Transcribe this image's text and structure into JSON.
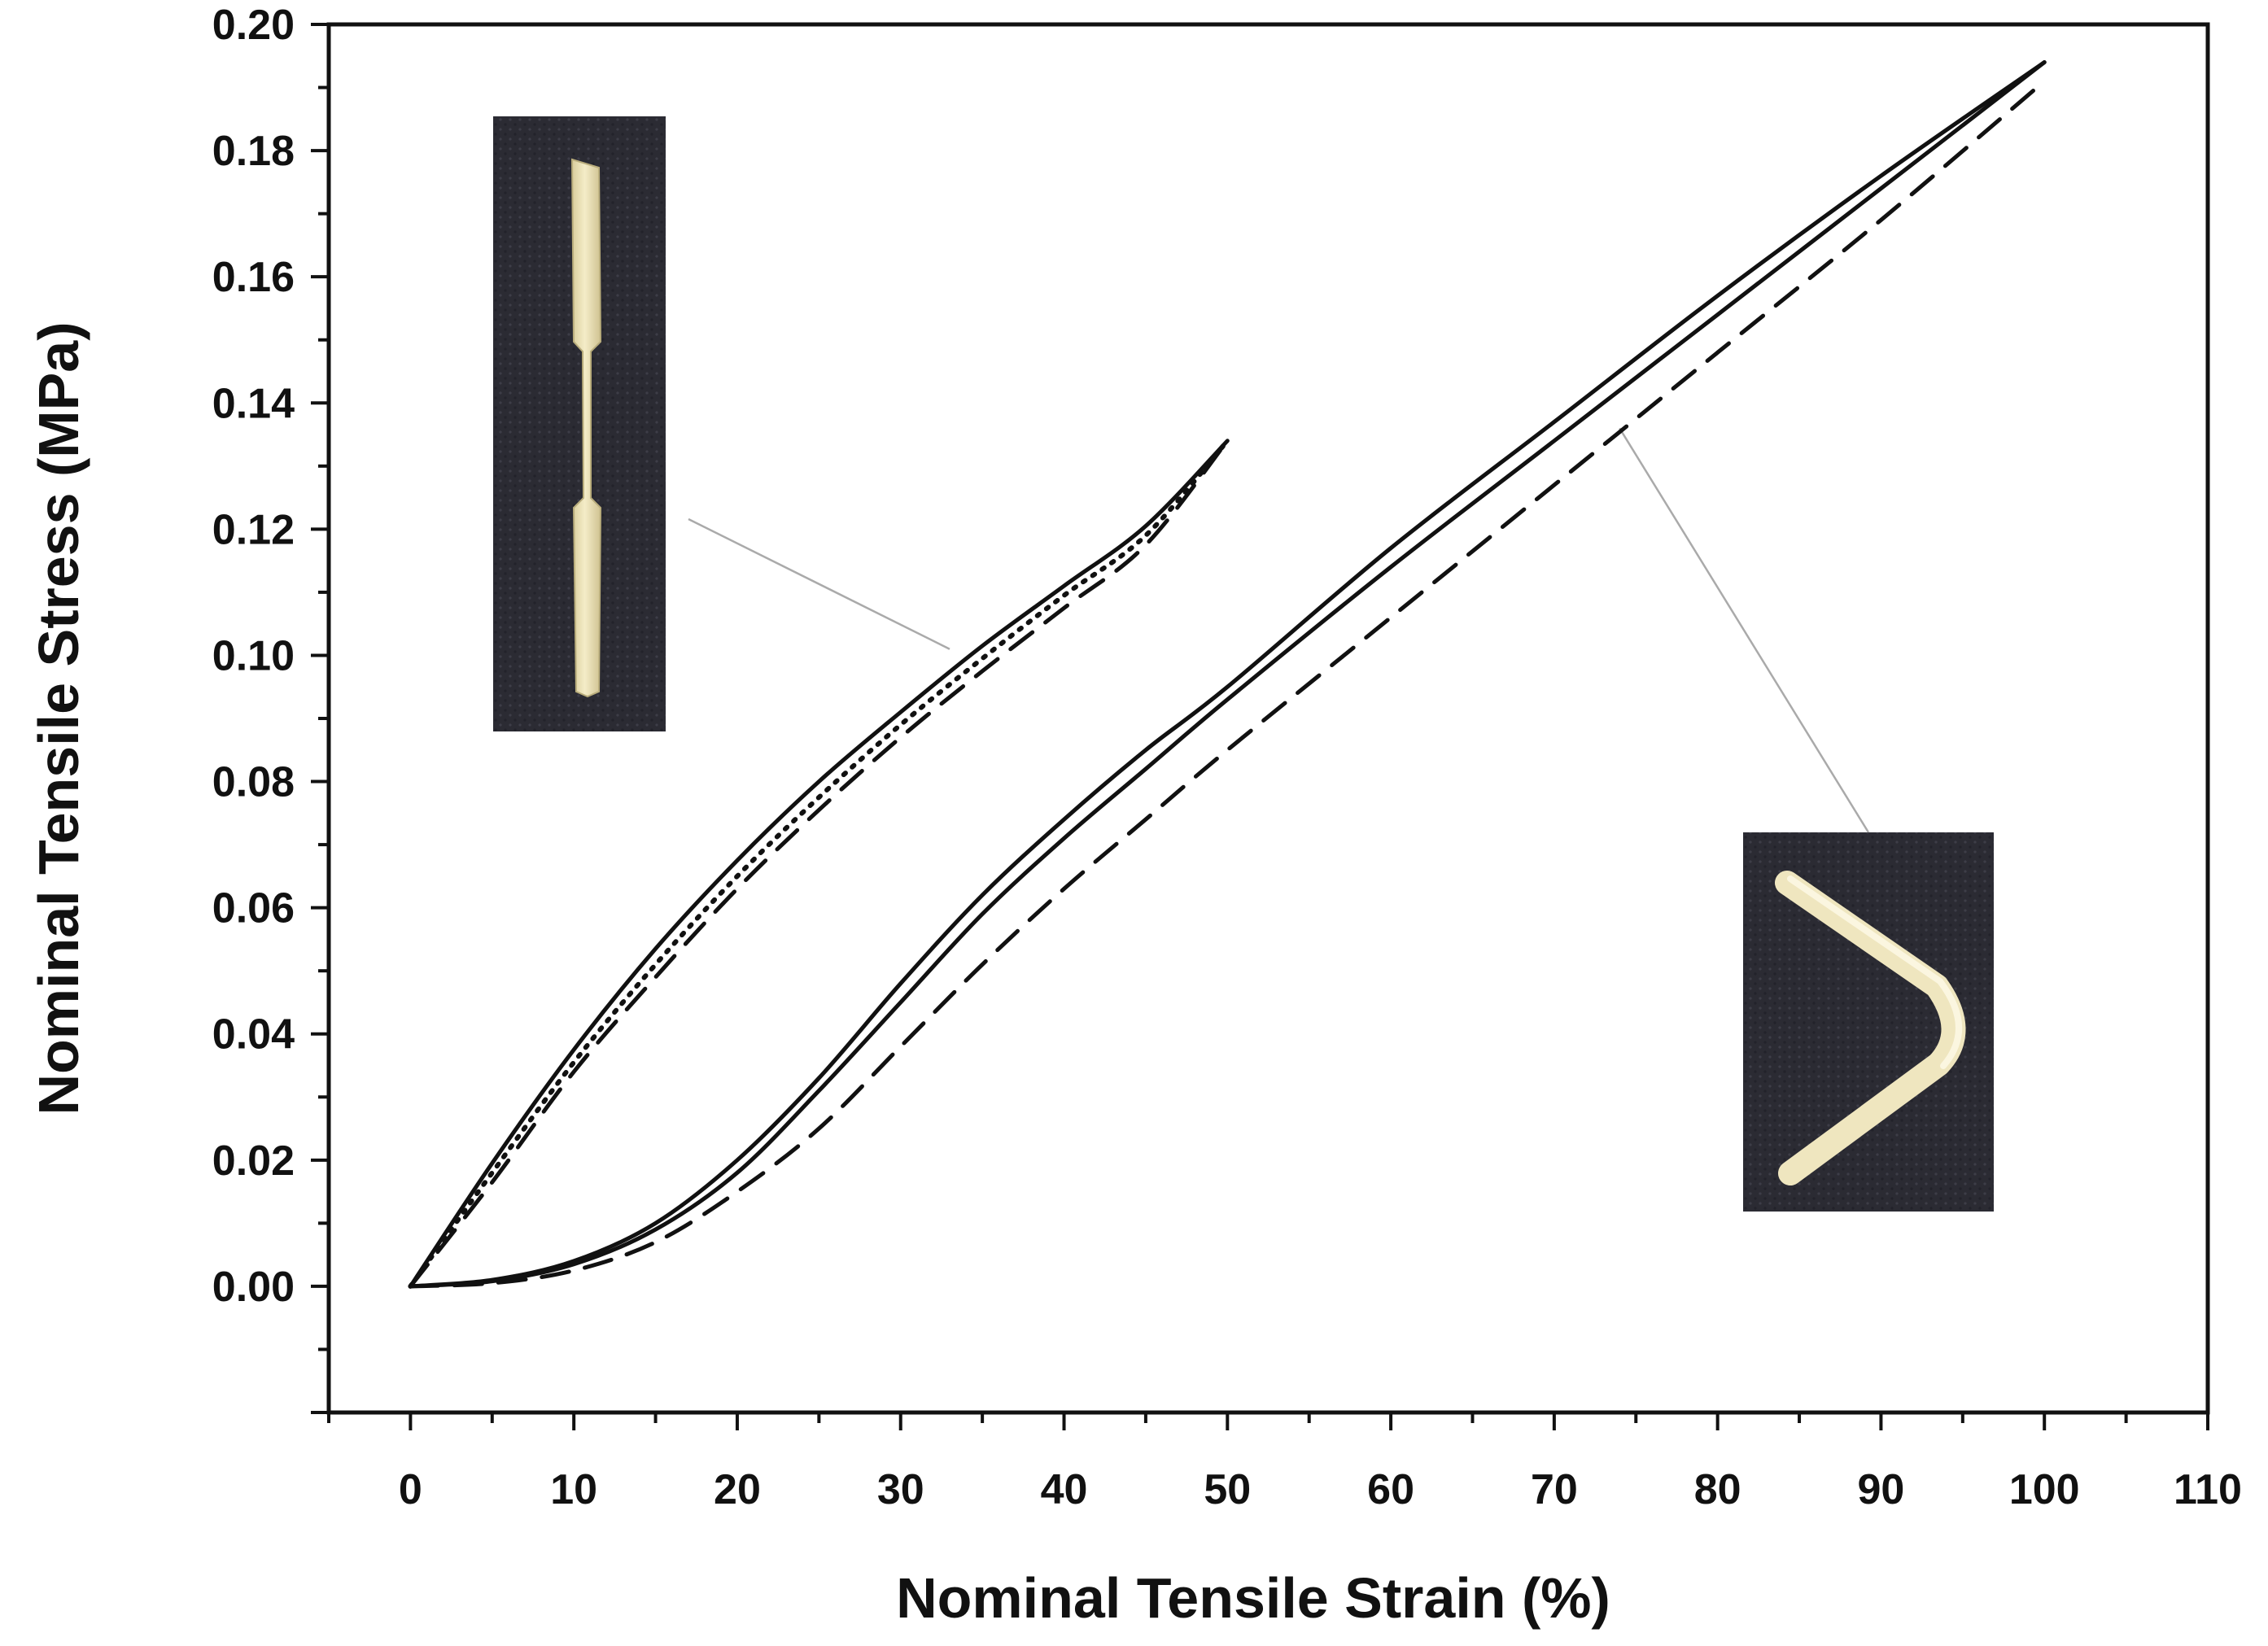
{
  "chart_data": {
    "type": "line",
    "title": "",
    "xlabel": "Nominal Tensile Strain (%)",
    "ylabel": "Nominal Tensile Stress (MPa)",
    "xlim": [
      -5,
      110
    ],
    "ylim": [
      -0.02,
      0.2
    ],
    "x_ticks": [
      "0",
      "10",
      "20",
      "30",
      "40",
      "50",
      "60",
      "70",
      "80",
      "90",
      "100",
      "110"
    ],
    "y_ticks": [
      "0.00",
      "0.02",
      "0.04",
      "0.06",
      "0.08",
      "0.10",
      "0.12",
      "0.14",
      "0.16",
      "0.18",
      "0.20"
    ],
    "grid": false,
    "legend": "none",
    "series": [
      {
        "group": "straight-specimen",
        "style": "solid",
        "x": [
          0,
          5,
          10,
          15,
          20,
          25,
          30,
          35,
          40,
          45,
          50
        ],
        "y": [
          0,
          0.0195,
          0.0375,
          0.0535,
          0.0675,
          0.08,
          0.091,
          0.1015,
          0.111,
          0.1205,
          0.134
        ]
      },
      {
        "group": "straight-specimen",
        "style": "dotted",
        "x": [
          0,
          5,
          10,
          15,
          20,
          25,
          30,
          35,
          40,
          45,
          50
        ],
        "y": [
          0,
          0.018,
          0.0355,
          0.051,
          0.065,
          0.0775,
          0.089,
          0.0995,
          0.1095,
          0.119,
          0.134
        ]
      },
      {
        "group": "straight-specimen",
        "style": "dashed",
        "x": [
          0,
          5,
          10,
          15,
          20,
          25,
          30,
          35,
          40,
          45,
          50
        ],
        "y": [
          0,
          0.0165,
          0.034,
          0.049,
          0.063,
          0.0755,
          0.087,
          0.0975,
          0.1075,
          0.1175,
          0.134
        ]
      },
      {
        "group": "v-shaped-specimen",
        "style": "solid",
        "x": [
          0,
          5,
          10,
          15,
          20,
          25,
          30,
          35,
          40,
          45,
          50,
          60,
          70,
          80,
          90,
          100
        ],
        "y": [
          0,
          0.001,
          0.004,
          0.01,
          0.02,
          0.033,
          0.048,
          0.062,
          0.074,
          0.085,
          0.095,
          0.117,
          0.137,
          0.157,
          0.176,
          0.194
        ]
      },
      {
        "group": "v-shaped-specimen",
        "style": "solid",
        "x": [
          0,
          5,
          10,
          15,
          20,
          25,
          30,
          35,
          40,
          45,
          50,
          60,
          70,
          80,
          90,
          100
        ],
        "y": [
          0,
          0.0008,
          0.0035,
          0.009,
          0.018,
          0.031,
          0.045,
          0.059,
          0.071,
          0.082,
          0.093,
          0.114,
          0.134,
          0.154,
          0.174,
          0.194
        ]
      },
      {
        "group": "v-shaped-specimen",
        "style": "dashed",
        "x": [
          0,
          5,
          10,
          15,
          20,
          25,
          30,
          35,
          40,
          45,
          50,
          60,
          70,
          80,
          90,
          100
        ],
        "y": [
          0,
          0.0005,
          0.0025,
          0.007,
          0.015,
          0.025,
          0.038,
          0.051,
          0.063,
          0.074,
          0.085,
          0.106,
          0.127,
          0.148,
          0.169,
          0.191
        ]
      }
    ],
    "insets": [
      {
        "name": "straight-specimen-photo",
        "points_to": {
          "x": 33,
          "y": 0.101
        }
      },
      {
        "name": "v-shaped-specimen-photo",
        "points_to": {
          "x": 74,
          "y": 0.136
        }
      }
    ],
    "colors": {
      "lines": "#111111",
      "photo_background": "#2b2b33",
      "specimen": "#efe6bf",
      "leader": "#aaaaaa"
    }
  }
}
